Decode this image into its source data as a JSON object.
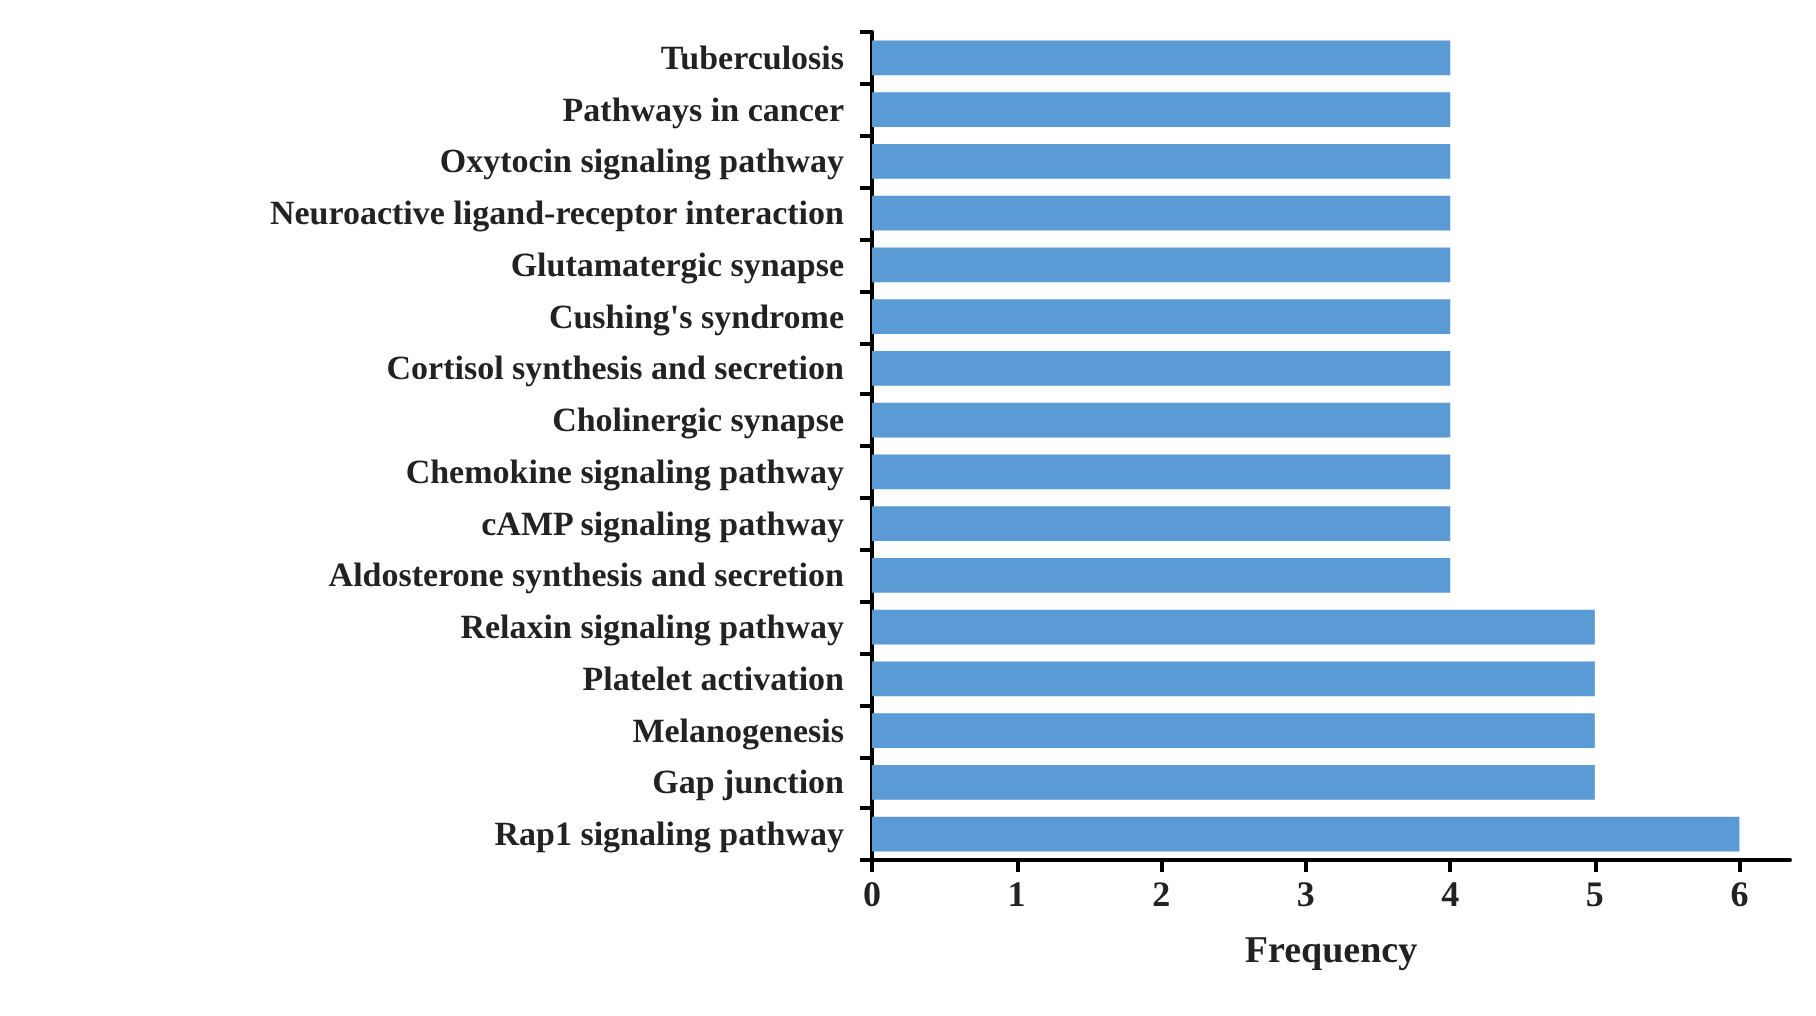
{
  "chart_data": {
    "type": "bar",
    "orientation": "horizontal",
    "xlabel": "Frequency",
    "categories": [
      "Tuberculosis",
      "Pathways in cancer",
      "Oxytocin signaling pathway",
      "Neuroactive ligand-receptor interaction",
      "Glutamatergic synapse",
      "Cushing's syndrome",
      "Cortisol synthesis and secretion",
      "Cholinergic synapse",
      "Chemokine signaling pathway",
      "cAMP signaling pathway",
      "Aldosterone synthesis and secretion",
      "Relaxin signaling pathway",
      "Platelet activation",
      "Melanogenesis",
      "Gap junction",
      "Rap1 signaling pathway"
    ],
    "values": [
      4,
      4,
      4,
      4,
      4,
      4,
      4,
      4,
      4,
      4,
      4,
      5,
      5,
      5,
      5,
      6
    ],
    "color": "#5b9bd5",
    "xlim": [
      0,
      6.35
    ],
    "xticks": [
      0,
      1,
      2,
      3,
      4,
      5,
      6
    ],
    "grid": false
  }
}
